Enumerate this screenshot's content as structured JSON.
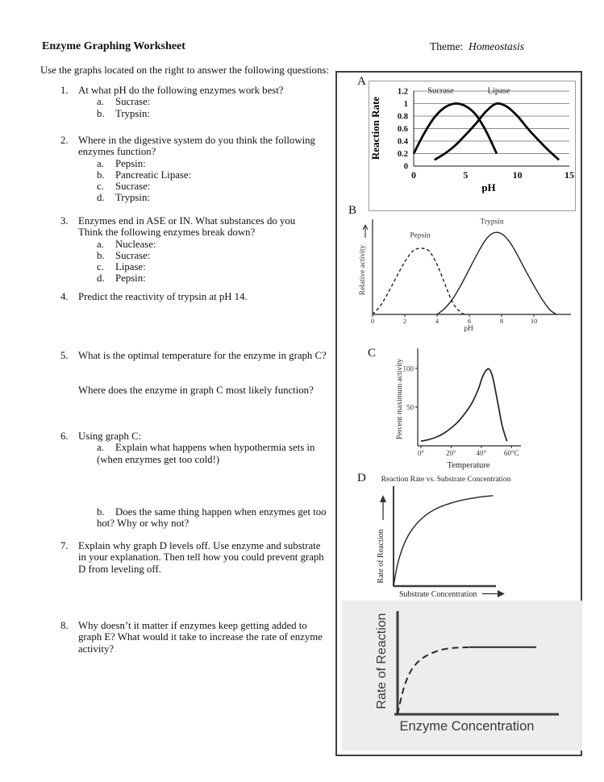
{
  "header": {
    "title": "Enzyme Graphing Worksheet",
    "theme_label": "Theme:",
    "theme_value": "Homeostasis",
    "intro": "Use the graphs located on the right to answer the following questions:"
  },
  "questions": [
    {
      "num": "1.",
      "text": "At what pH do the following enzymes work best?",
      "subs": [
        {
          "label": "a.",
          "text": "Sucrase:"
        },
        {
          "label": "b.",
          "text": "Trypsin:"
        }
      ]
    },
    {
      "num": "2.",
      "text": "Where in the digestive system do you think the following\nenzymes function?",
      "subs": [
        {
          "label": "a.",
          "text": "Pepsin:"
        },
        {
          "label": "b.",
          "text": "Pancreatic Lipase:"
        },
        {
          "label": "c.",
          "text": "Sucrase:"
        },
        {
          "label": "d.",
          "text": "Trypsin:"
        }
      ]
    },
    {
      "num": "3.",
      "text": "Enzymes end in ASE or IN.  What substances do you\nThink the following enzymes break down?",
      "subs": [
        {
          "label": "a.",
          "text": "Nuclease:"
        },
        {
          "label": "b.",
          "text": "Sucrase:"
        },
        {
          "label": "c.",
          "text": "Lipase:"
        },
        {
          "label": "d.",
          "text": "Pepsin:"
        }
      ]
    },
    {
      "num": "4.",
      "text": "Predict the reactivity of trypsin at pH 14.",
      "subs": []
    },
    {
      "num": "5.",
      "text": "What is the optimal temperature for the enzyme in graph C?",
      "subs": []
    },
    {
      "num": "",
      "text": "Where does the enzyme in graph C most likely function?",
      "subs": []
    },
    {
      "num": "6.",
      "text": "Using graph C:",
      "subs": [
        {
          "label": "a.",
          "text": "Explain what happens when hypothermia sets in\n(when enzymes get too cold!)"
        }
      ]
    },
    {
      "num": "",
      "text": "",
      "subs": [
        {
          "label": "b.",
          "text": "Does the same thing happen when enzymes get too\nhot?  Why or why not?"
        }
      ]
    },
    {
      "num": "7.",
      "text": "Explain why graph D levels off.  Use enzyme and substrate\nin your explanation.  Then tell how you could prevent graph\nD from leveling off.",
      "subs": []
    },
    {
      "num": "8.",
      "text": "Why doesn’t it matter if enzymes keep getting added to\ngraph E?  What would it take to increase the rate of enzyme\nactivity?",
      "subs": []
    }
  ],
  "panel": {
    "labels": [
      "A",
      "B",
      "C",
      "D",
      "E"
    ]
  },
  "chart_data": [
    {
      "type": "line",
      "title": "",
      "xlabel": "pH",
      "ylabel": "Reaction Rate",
      "xlim": [
        0,
        15
      ],
      "ylim": [
        0,
        1.2
      ],
      "xticks": [
        0,
        5,
        10,
        15
      ],
      "yticks": [
        0,
        0.2,
        0.4,
        0.6,
        0.8,
        1,
        1.2
      ],
      "ytick_labels": [
        "0",
        "0.2",
        "0.4",
        "0.6",
        "0.8",
        "1",
        "1.2"
      ],
      "grid": true,
      "legend_position": "top-inline",
      "series": [
        {
          "name": "Sucrase",
          "label_at": [
            2.6,
            1.165
          ],
          "x": [
            0,
            1,
            2,
            3,
            4,
            5,
            6,
            7,
            8
          ],
          "y": [
            0.2,
            0.52,
            0.78,
            0.94,
            1.0,
            0.96,
            0.82,
            0.55,
            0.2
          ]
        },
        {
          "name": "Lipase",
          "label_at": [
            8.2,
            1.165
          ],
          "x": [
            2,
            3,
            4,
            5,
            6,
            7,
            8,
            9,
            10,
            11,
            12,
            13,
            14
          ],
          "y": [
            0.1,
            0.2,
            0.33,
            0.5,
            0.68,
            0.88,
            1.0,
            0.95,
            0.8,
            0.6,
            0.42,
            0.25,
            0.1
          ]
        }
      ]
    },
    {
      "type": "line",
      "title": "",
      "xlabel": "pH",
      "ylabel": "Relative activity",
      "xlim": [
        0,
        12
      ],
      "ylim": [
        0,
        1.05
      ],
      "xticks": [
        0,
        2,
        4,
        6,
        8,
        10
      ],
      "series": [
        {
          "name": "Pepsin",
          "dash": true,
          "label_at": [
            2.95,
            0.85
          ],
          "x": [
            0,
            0.5,
            1,
            1.5,
            2,
            2.5,
            3,
            3.5,
            4,
            4.5,
            5,
            5.5,
            5.8
          ],
          "y": [
            0,
            0.1,
            0.25,
            0.42,
            0.58,
            0.7,
            0.73,
            0.7,
            0.55,
            0.33,
            0.12,
            0.02,
            0
          ]
        },
        {
          "name": "Trypsin",
          "label_at": [
            7.4,
            1.0
          ],
          "x": [
            4,
            4.5,
            5,
            5.5,
            6,
            6.5,
            7,
            7.5,
            8,
            8.5,
            9,
            9.5,
            10,
            10.5,
            11,
            11.4
          ],
          "y": [
            0,
            0.07,
            0.18,
            0.33,
            0.5,
            0.67,
            0.82,
            0.9,
            0.89,
            0.8,
            0.65,
            0.48,
            0.32,
            0.17,
            0.05,
            0
          ]
        }
      ]
    },
    {
      "type": "line",
      "title": "",
      "xlabel": "Temperature",
      "ylabel": "Percent maximum activity",
      "xlim": [
        0,
        62
      ],
      "ylim": [
        0,
        126
      ],
      "xticks": [
        0,
        20,
        40,
        60
      ],
      "xtick_labels": [
        "0°",
        "20°",
        "40°",
        "60°C"
      ],
      "yticks": [
        50,
        100
      ],
      "series": [
        {
          "name": "",
          "x": [
            0,
            5,
            10,
            15,
            20,
            25,
            30,
            34,
            38,
            41,
            44,
            46,
            48,
            51,
            54,
            57
          ],
          "y": [
            6,
            8,
            11,
            16,
            23,
            32,
            44,
            56,
            73,
            90,
            99,
            97,
            85,
            55,
            25,
            6
          ]
        }
      ]
    },
    {
      "type": "line",
      "title": "Reaction Rate vs. Substrate Concentration",
      "xlabel": "Substrate Concentration",
      "ylabel": "Rate of Reaction",
      "xlim": [
        0,
        10.5
      ],
      "ylim": [
        0,
        1.05
      ],
      "series": [
        {
          "name": "",
          "x": [
            0,
            0.4,
            1,
            1.8,
            3,
            4.5,
            6.5,
            8.5,
            10.2
          ],
          "y": [
            0,
            0.22,
            0.42,
            0.58,
            0.72,
            0.82,
            0.89,
            0.93,
            0.95
          ]
        }
      ]
    },
    {
      "type": "line",
      "title": "",
      "xlabel": "Enzyme Concentration",
      "ylabel": "Rate of Reaction",
      "xlim": [
        0,
        12
      ],
      "ylim": [
        0,
        1
      ],
      "series": [
        {
          "name": "",
          "dash": true,
          "x": [
            0,
            0.5,
            1.1,
            1.9,
            2.9,
            4,
            5.2,
            6.4
          ],
          "y": [
            0,
            0.24,
            0.41,
            0.52,
            0.59,
            0.63,
            0.645,
            0.65
          ]
        },
        {
          "name": "",
          "straight": true,
          "x": [
            6.2,
            12
          ],
          "y": [
            0.65,
            0.65
          ]
        }
      ]
    }
  ]
}
